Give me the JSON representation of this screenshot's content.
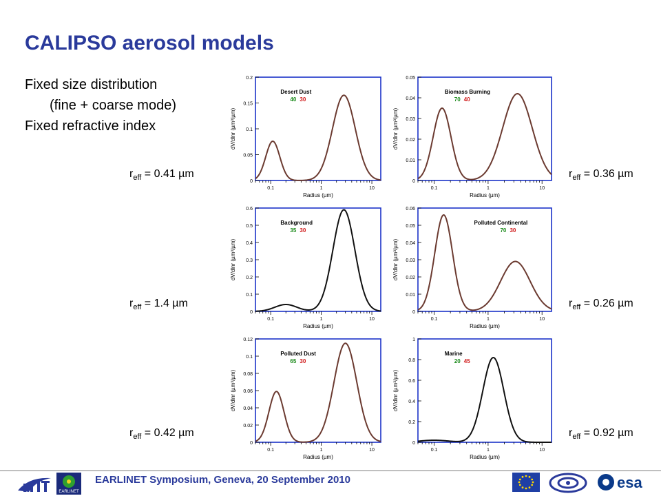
{
  "slide": {
    "title": "CALIPSO aerosol models",
    "bullets": [
      "Fixed size distribution",
      "(fine + coarse mode)",
      "Fixed refractive index"
    ],
    "footer": "EARLINET Symposium, Geneva, 20 September 2010",
    "logos": [
      "ift-logo",
      "earlinet-logo",
      "eu-flag-logo",
      "fp6-logo",
      "esa-logo"
    ],
    "logo_texts": {
      "earlinet": "EARLINET",
      "esa": "esa"
    },
    "reff_labels": [
      {
        "prefix": "r",
        "sub": "eff",
        "text": " = 0.41 µm"
      },
      {
        "prefix": "r",
        "sub": "eff",
        "text": " = 0.36 µm"
      },
      {
        "prefix": "r",
        "sub": "eff",
        "text": " = 1.4 µm"
      },
      {
        "prefix": "r",
        "sub": "eff",
        "text": " = 0.26 µm"
      },
      {
        "prefix": "r",
        "sub": "eff",
        "text": " = 0.42 µm"
      },
      {
        "prefix": "r",
        "sub": "eff",
        "text": " = 0.92 µm"
      }
    ]
  },
  "colors": {
    "title": "#2a3a9b",
    "frame": "#1a32c8",
    "curve_brown": "#6b3a30",
    "curve_black": "#111111",
    "green": "#1a8a1a",
    "red": "#d01818"
  },
  "chart_data": [
    {
      "type": "line",
      "name": "Desert Dust",
      "nums": [
        "40",
        "30"
      ],
      "ylim": [
        0,
        0.2
      ],
      "yticks": [
        "0",
        "0.05",
        "0.1",
        "0.15",
        "0.2"
      ],
      "xlim": [
        0.05,
        15
      ],
      "xlog": true,
      "xticks": [
        "0.1",
        "1",
        "10"
      ],
      "xlabel": "Radius (µm)",
      "ylabel": "dV/dlnr (µm³/µm)",
      "curve": "brown",
      "modes": [
        {
          "r": 0.11,
          "h": 0.076,
          "w": 0.32
        },
        {
          "r": 2.8,
          "h": 0.165,
          "w": 0.52
        }
      ]
    },
    {
      "type": "line",
      "name": "Biomass Burning",
      "nums": [
        "70",
        "40"
      ],
      "ylim": [
        0,
        0.05
      ],
      "yticks": [
        "0",
        "0.01",
        "0.02",
        "0.03",
        "0.04",
        "0.05"
      ],
      "xlim": [
        0.05,
        15
      ],
      "xlog": true,
      "xticks": [
        "0.1",
        "1",
        "10"
      ],
      "xlabel": "Radius (µm)",
      "ylabel": "dV/dlnr (µm³/µm)",
      "curve": "brown",
      "modes": [
        {
          "r": 0.14,
          "h": 0.035,
          "w": 0.38
        },
        {
          "r": 3.5,
          "h": 0.042,
          "w": 0.63
        }
      ]
    },
    {
      "type": "line",
      "name": "Background",
      "nums": [
        "35",
        "30"
      ],
      "ylim": [
        0,
        0.6
      ],
      "yticks": [
        "0",
        "0.1",
        "0.2",
        "0.3",
        "0.4",
        "0.5",
        "0.6"
      ],
      "xlim": [
        0.05,
        15
      ],
      "xlog": true,
      "xticks": [
        "0.1",
        "1",
        "10"
      ],
      "xlabel": "Radius (µm)",
      "ylabel": "dV/dlnr (µm³/µm)",
      "curve": "black",
      "modes": [
        {
          "r": 0.2,
          "h": 0.04,
          "w": 0.5
        },
        {
          "r": 2.8,
          "h": 0.59,
          "w": 0.5
        }
      ]
    },
    {
      "type": "line",
      "name": "Polluted Continental",
      "nums": [
        "70",
        "30"
      ],
      "ylim": [
        0,
        0.06
      ],
      "yticks": [
        "0",
        "0.01",
        "0.02",
        "0.03",
        "0.04",
        "0.05",
        "0.06"
      ],
      "xlim": [
        0.05,
        15
      ],
      "xlog": true,
      "xticks": [
        "0.1",
        "1",
        "10"
      ],
      "xlabel": "Radius (µm)",
      "ylabel": "dV/dlnr (µm³/µm)",
      "curve": "brown",
      "modes": [
        {
          "r": 0.15,
          "h": 0.056,
          "w": 0.38
        },
        {
          "r": 3.2,
          "h": 0.029,
          "w": 0.63
        }
      ]
    },
    {
      "type": "line",
      "name": "Polluted Dust",
      "nums": [
        "65",
        "30"
      ],
      "ylim": [
        0,
        0.12
      ],
      "yticks": [
        "0",
        "0.02",
        "0.04",
        "0.06",
        "0.08",
        "0.1",
        "0.12"
      ],
      "xlim": [
        0.05,
        15
      ],
      "xlog": true,
      "xticks": [
        "0.1",
        "1",
        "10"
      ],
      "xlabel": "Radius (µm)",
      "ylabel": "dV/dlnr (µm³/µm)",
      "curve": "brown",
      "modes": [
        {
          "r": 0.13,
          "h": 0.059,
          "w": 0.34
        },
        {
          "r": 3.0,
          "h": 0.115,
          "w": 0.52
        }
      ]
    },
    {
      "type": "line",
      "name": "Marine",
      "nums": [
        "20",
        "45"
      ],
      "ylim": [
        0,
        1
      ],
      "yticks": [
        "0",
        "0.2",
        "0.4",
        "0.6",
        "0.8",
        "1"
      ],
      "xlim": [
        0.05,
        15
      ],
      "xlog": true,
      "xticks": [
        "0.1",
        "1",
        "10"
      ],
      "xlabel": "Radius (µm)",
      "ylabel": "dV/dlnr (µm³/µm)",
      "curve": "black",
      "modes": [
        {
          "r": 0.1,
          "h": 0.02,
          "w": 0.6
        },
        {
          "r": 1.25,
          "h": 0.82,
          "w": 0.45
        }
      ]
    }
  ]
}
